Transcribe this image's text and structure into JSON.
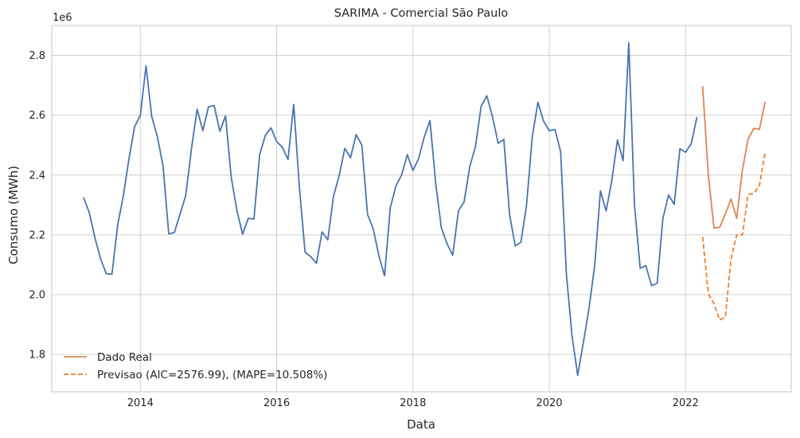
{
  "chart_data": {
    "type": "line",
    "title": "SARIMA - Comercial São Paulo",
    "xlabel": "Data",
    "ylabel": "Consumo (MWh)",
    "y_offset_label": "1e6",
    "xlim": [
      2012.7,
      2023.55
    ],
    "ylim": [
      1.675,
      2.9
    ],
    "x_ticks": [
      2014,
      2016,
      2018,
      2020,
      2022
    ],
    "x_tick_labels": [
      "2014",
      "2016",
      "2018",
      "2020",
      "2022"
    ],
    "y_ticks": [
      1.8,
      2.0,
      2.2,
      2.4,
      2.6,
      2.8
    ],
    "y_tick_labels": [
      "1.8",
      "2.0",
      "2.2",
      "2.4",
      "2.6",
      "2.8"
    ],
    "grid": true,
    "legend_position": "bottom-left",
    "series": [
      {
        "role": "history",
        "color": "#4c72b0",
        "style": "solid",
        "start": "2013-03",
        "y": [
          2.325,
          2.275,
          2.19,
          2.12,
          2.07,
          2.068,
          2.232,
          2.33,
          2.455,
          2.562,
          2.6,
          2.765,
          2.596,
          2.528,
          2.43,
          2.203,
          2.208,
          2.27,
          2.332,
          2.488,
          2.62,
          2.548,
          2.628,
          2.632,
          2.546,
          2.598,
          2.392,
          2.282,
          2.202,
          2.255,
          2.253,
          2.468,
          2.532,
          2.558,
          2.512,
          2.493,
          2.452,
          2.636,
          2.36,
          2.142,
          2.127,
          2.105,
          2.21,
          2.183,
          2.328,
          2.398,
          2.489,
          2.458,
          2.535,
          2.5,
          2.268,
          2.22,
          2.13,
          2.063,
          2.29,
          2.363,
          2.4,
          2.468,
          2.415,
          2.455,
          2.528,
          2.582,
          2.372,
          2.223,
          2.17,
          2.132,
          2.28,
          2.31,
          2.428,
          2.495,
          2.63,
          2.665,
          2.595,
          2.506,
          2.519,
          2.268,
          2.163,
          2.175,
          2.3,
          2.528,
          2.643,
          2.58,
          2.548,
          2.552,
          2.478,
          2.072,
          1.862,
          1.73,
          1.84,
          1.955,
          2.098,
          2.347,
          2.28,
          2.38,
          2.517,
          2.448,
          2.842,
          2.3,
          2.088,
          2.097,
          2.03,
          2.038,
          2.255,
          2.333,
          2.302,
          2.488,
          2.476,
          2.505,
          2.594
        ]
      },
      {
        "name": "Dado Real",
        "color": "#dd8452",
        "style": "solid",
        "start": "2022-04",
        "y": [
          2.697,
          2.4,
          2.223,
          2.225,
          2.27,
          2.32,
          2.255,
          2.417,
          2.52,
          2.556,
          2.553,
          2.645
        ]
      },
      {
        "name": "Previsao (AIC=2576.99), (MAPE=10.508%)",
        "color": "#f07f28",
        "style": "dashed",
        "start": "2022-04",
        "y": [
          2.193,
          2.003,
          1.97,
          1.915,
          1.925,
          2.12,
          2.2,
          2.2,
          2.335,
          2.338,
          2.365,
          2.475
        ]
      }
    ]
  }
}
